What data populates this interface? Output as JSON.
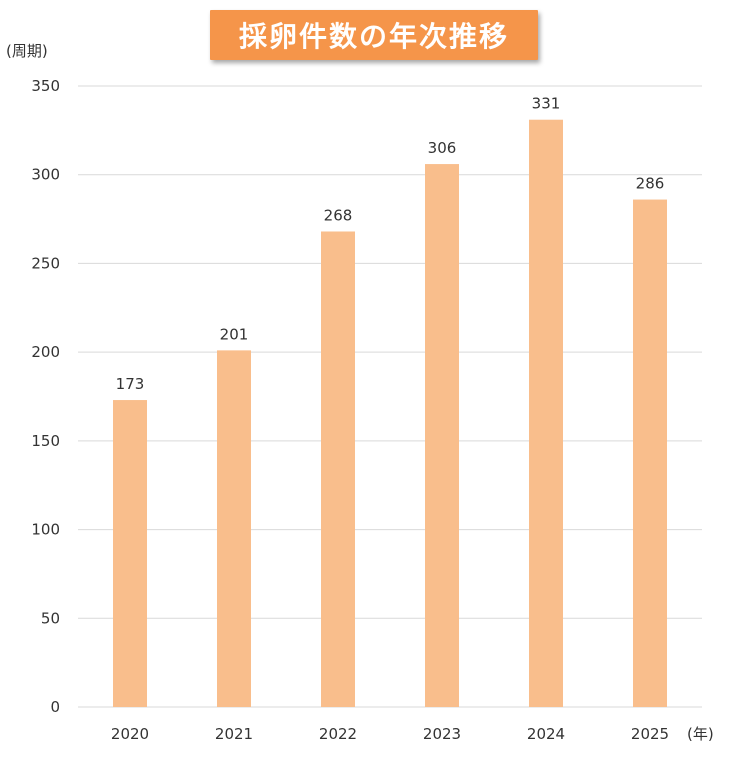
{
  "chart_data": {
    "type": "bar",
    "title": "採卵件数の年次推移",
    "ylabel": "(周期)",
    "xlabel": "(年)",
    "categories": [
      "2020",
      "2021",
      "2022",
      "2023",
      "2024",
      "2025"
    ],
    "values": [
      173,
      201,
      268,
      306,
      331,
      286
    ],
    "ylim": [
      0,
      350
    ],
    "yticks": [
      0,
      50,
      100,
      150,
      200,
      250,
      300,
      350
    ],
    "grid": true,
    "data_labels": true,
    "legend": "none"
  },
  "colors": {
    "bar": "#f9be8c",
    "title_background": "#f5954a",
    "title_text": "#ffffff",
    "gridline": "#d9d9d9",
    "axis_text": "#333333"
  }
}
